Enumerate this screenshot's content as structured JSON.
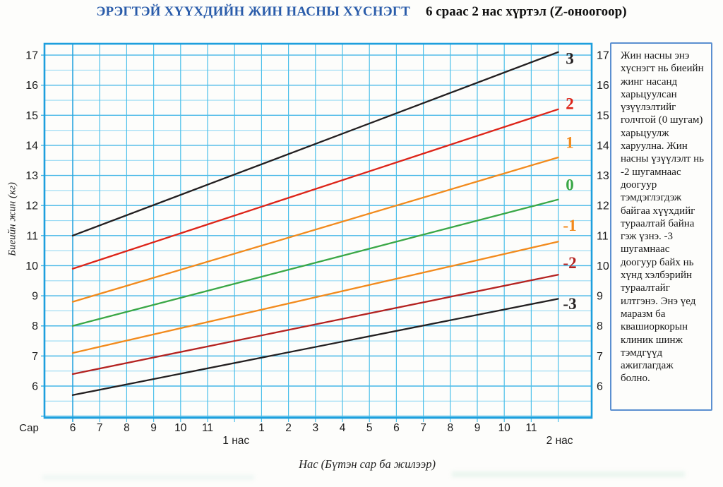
{
  "header": {
    "title": "ЭРЭГТЭЙ ХҮҮХДИЙН ЖИН НАСНЫ ХҮСНЭГТ",
    "subtitle": "6 сраас 2 нас хүртэл (Z-оноогоор)"
  },
  "side_panel": {
    "text": "Жин насны энэ хүснэгт нь биеийн жинг насанд харьцуулсан үзүүлэлтийг голчтой (0 шугам) харьцуулж харуулна. Жин насны үзүүлэлт нь -2 шугамнаас доогуур тэмдэглэгдэж байгаа хүүхдийг тураалтай байна гэж үзнэ. -3 шугамнаас доогуур байх нь хүнд хэлбэрийн тураалтайг илтгэнэ. Энэ үед маразм ба квашиоркорын клиник шинж тэмдгүүд ажиглагдаж болно."
  },
  "chart_data": {
    "type": "line",
    "title": "",
    "xlabel": "Нас (Бүтэн сар ба жилээр)",
    "ylabel": "Биеийн жин (кг)",
    "x_unit_label": "Сар",
    "x_range_months": [
      6,
      24
    ],
    "ylim": [
      5.0,
      17.4
    ],
    "grid": {
      "on": true,
      "x_step_months": 1,
      "y_step_kg": 0.5
    },
    "y_ticks": [
      6,
      7,
      8,
      9,
      10,
      11,
      12,
      13,
      14,
      15,
      16,
      17
    ],
    "y_ticks_right": [
      6,
      7,
      8,
      9,
      10,
      11,
      12,
      13,
      14,
      15,
      16,
      17
    ],
    "x_ticks": [
      {
        "m": 6,
        "label": "6"
      },
      {
        "m": 7,
        "label": "7"
      },
      {
        "m": 8,
        "label": "8"
      },
      {
        "m": 9,
        "label": "9"
      },
      {
        "m": 10,
        "label": "10"
      },
      {
        "m": 11,
        "label": "11"
      },
      {
        "m": 13,
        "label": "1"
      },
      {
        "m": 14,
        "label": "2"
      },
      {
        "m": 15,
        "label": "3"
      },
      {
        "m": 16,
        "label": "4"
      },
      {
        "m": 17,
        "label": "5"
      },
      {
        "m": 18,
        "label": "6"
      },
      {
        "m": 19,
        "label": "7"
      },
      {
        "m": 20,
        "label": "8"
      },
      {
        "m": 21,
        "label": "9"
      },
      {
        "m": 22,
        "label": "10"
      },
      {
        "m": 23,
        "label": "11"
      }
    ],
    "year_marks": [
      {
        "m": 12,
        "label": "1 нас"
      },
      {
        "m": 24,
        "label": "2 нас"
      }
    ],
    "legend_position": "right-inside",
    "series": [
      {
        "name": "3",
        "color": "#231f20",
        "points": [
          [
            6,
            11.0
          ],
          [
            24,
            17.1
          ]
        ],
        "label_y_kg": 16.9
      },
      {
        "name": "2",
        "color": "#dd2418",
        "points": [
          [
            6,
            9.9
          ],
          [
            24,
            15.2
          ]
        ],
        "label_y_kg": 15.4
      },
      {
        "name": "1",
        "color": "#f28a1c",
        "points": [
          [
            6,
            8.8
          ],
          [
            24,
            13.6
          ]
        ],
        "label_y_kg": 14.1
      },
      {
        "name": "0",
        "color": "#3aa746",
        "points": [
          [
            6,
            8.0
          ],
          [
            24,
            12.2
          ]
        ],
        "label_y_kg": 12.7
      },
      {
        "name": "-1",
        "color": "#f28a1c",
        "points": [
          [
            6,
            7.1
          ],
          [
            24,
            10.8
          ]
        ],
        "label_y_kg": 11.35
      },
      {
        "name": "-2",
        "color": "#b42220",
        "points": [
          [
            6,
            6.4
          ],
          [
            24,
            9.7
          ]
        ],
        "label_y_kg": 10.1
      },
      {
        "name": "-3",
        "color": "#231f20",
        "points": [
          [
            6,
            5.7
          ],
          [
            24,
            8.9
          ]
        ],
        "label_y_kg": 8.75
      }
    ]
  },
  "colors": {
    "title_blue": "#2a5caa",
    "plot_border": "#1d9fdd",
    "grid_major": "#45b7e7",
    "grid_minor": "#97daf4",
    "axis_text": "#1c1c1c",
    "panel_border": "#5b8fd0"
  }
}
